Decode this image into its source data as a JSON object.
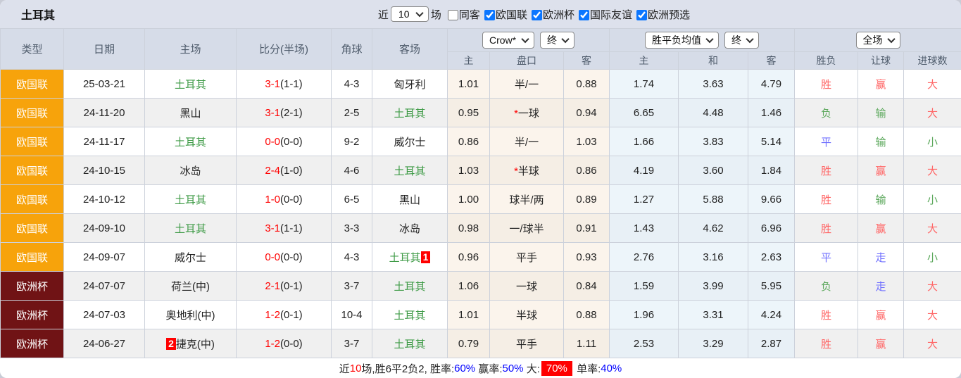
{
  "colors": {
    "league_orange": "#f7a30b",
    "cup_maroon": "#701315",
    "win_red": "#ff6666",
    "lose_green": "#5ca85c",
    "draw_blue": "#7070ff",
    "score_red": "#ff0000",
    "team_green": "#3f9b47",
    "link_blue": "#0000ff",
    "highlight_red": "#ff0000"
  },
  "topbar": {
    "title": "土耳其",
    "recent_label": "近",
    "recent_value": "10",
    "matches_label": "场",
    "filters": [
      {
        "label": "同客",
        "checked": false
      },
      {
        "label": "欧国联",
        "checked": true
      },
      {
        "label": "欧洲杯",
        "checked": true
      },
      {
        "label": "国际友谊",
        "checked": true
      },
      {
        "label": "欧洲预选",
        "checked": true
      }
    ]
  },
  "table": {
    "left_headers": [
      "类型",
      "日期",
      "主场",
      "比分(半场)",
      "角球",
      "客场"
    ],
    "dropdowns": {
      "company": "Crow*",
      "company_state": "终",
      "odds_type": "胜平负均值",
      "odds_state": "终",
      "scope": "全场"
    },
    "sub_headers": [
      "主",
      "盘口",
      "客",
      "主",
      "和",
      "客",
      "胜负",
      "让球",
      "进球数"
    ],
    "rows": [
      {
        "type": "欧国联",
        "type_cls": "nl",
        "date": "25-03-21",
        "home": "土耳其",
        "home_green": true,
        "home_badge": "",
        "score_ft": "3-1",
        "score_ht": "(1-1)",
        "corners": "4-3",
        "away": "匈牙利",
        "away_green": false,
        "away_badge": "",
        "h_home": "1.01",
        "handicap_star": false,
        "handicap": "半/一",
        "h_away": "0.88",
        "o_home": "1.74",
        "o_draw": "3.63",
        "o_away": "4.79",
        "result": "胜",
        "result_c": "r",
        "cover": "赢",
        "cover_c": "r",
        "goals": "大",
        "goals_c": "r"
      },
      {
        "type": "欧国联",
        "type_cls": "nl",
        "date": "24-11-20",
        "home": "黑山",
        "home_green": false,
        "home_badge": "",
        "score_ft": "3-1",
        "score_ht": "(2-1)",
        "corners": "2-5",
        "away": "土耳其",
        "away_green": true,
        "away_badge": "",
        "h_home": "0.95",
        "handicap_star": true,
        "handicap": "一球",
        "h_away": "0.94",
        "o_home": "6.65",
        "o_draw": "4.48",
        "o_away": "1.46",
        "result": "负",
        "result_c": "g",
        "cover": "输",
        "cover_c": "g",
        "goals": "大",
        "goals_c": "r"
      },
      {
        "type": "欧国联",
        "type_cls": "nl",
        "date": "24-11-17",
        "home": "土耳其",
        "home_green": true,
        "home_badge": "",
        "score_ft": "0-0",
        "score_ht": "(0-0)",
        "corners": "9-2",
        "away": "威尔士",
        "away_green": false,
        "away_badge": "",
        "h_home": "0.86",
        "handicap_star": false,
        "handicap": "半/一",
        "h_away": "1.03",
        "o_home": "1.66",
        "o_draw": "3.83",
        "o_away": "5.14",
        "result": "平",
        "result_c": "b",
        "cover": "输",
        "cover_c": "g",
        "goals": "小",
        "goals_c": "g"
      },
      {
        "type": "欧国联",
        "type_cls": "nl",
        "date": "24-10-15",
        "home": "冰岛",
        "home_green": false,
        "home_badge": "",
        "score_ft": "2-4",
        "score_ht": "(1-0)",
        "corners": "4-6",
        "away": "土耳其",
        "away_green": true,
        "away_badge": "",
        "h_home": "1.03",
        "handicap_star": true,
        "handicap": "半球",
        "h_away": "0.86",
        "o_home": "4.19",
        "o_draw": "3.60",
        "o_away": "1.84",
        "result": "胜",
        "result_c": "r",
        "cover": "赢",
        "cover_c": "r",
        "goals": "大",
        "goals_c": "r"
      },
      {
        "type": "欧国联",
        "type_cls": "nl",
        "date": "24-10-12",
        "home": "土耳其",
        "home_green": true,
        "home_badge": "",
        "score_ft": "1-0",
        "score_ht": "(0-0)",
        "corners": "6-5",
        "away": "黑山",
        "away_green": false,
        "away_badge": "",
        "h_home": "1.00",
        "handicap_star": false,
        "handicap": "球半/两",
        "h_away": "0.89",
        "o_home": "1.27",
        "o_draw": "5.88",
        "o_away": "9.66",
        "result": "胜",
        "result_c": "r",
        "cover": "输",
        "cover_c": "g",
        "goals": "小",
        "goals_c": "g"
      },
      {
        "type": "欧国联",
        "type_cls": "nl",
        "date": "24-09-10",
        "home": "土耳其",
        "home_green": true,
        "home_badge": "",
        "score_ft": "3-1",
        "score_ht": "(1-1)",
        "corners": "3-3",
        "away": "冰岛",
        "away_green": false,
        "away_badge": "",
        "h_home": "0.98",
        "handicap_star": false,
        "handicap": "一/球半",
        "h_away": "0.91",
        "o_home": "1.43",
        "o_draw": "4.62",
        "o_away": "6.96",
        "result": "胜",
        "result_c": "r",
        "cover": "赢",
        "cover_c": "r",
        "goals": "大",
        "goals_c": "r"
      },
      {
        "type": "欧国联",
        "type_cls": "nl",
        "date": "24-09-07",
        "home": "威尔士",
        "home_green": false,
        "home_badge": "",
        "score_ft": "0-0",
        "score_ht": "(0-0)",
        "corners": "4-3",
        "away": "土耳其",
        "away_green": true,
        "away_badge": "1",
        "h_home": "0.96",
        "handicap_star": false,
        "handicap": "平手",
        "h_away": "0.93",
        "o_home": "2.76",
        "o_draw": "3.16",
        "o_away": "2.63",
        "result": "平",
        "result_c": "b",
        "cover": "走",
        "cover_c": "b",
        "goals": "小",
        "goals_c": "g"
      },
      {
        "type": "欧洲杯",
        "type_cls": "ec",
        "date": "24-07-07",
        "home": "荷兰(中)",
        "home_green": false,
        "home_badge": "",
        "score_ft": "2-1",
        "score_ht": "(0-1)",
        "corners": "3-7",
        "away": "土耳其",
        "away_green": true,
        "away_badge": "",
        "h_home": "1.06",
        "handicap_star": false,
        "handicap": "一球",
        "h_away": "0.84",
        "o_home": "1.59",
        "o_draw": "3.99",
        "o_away": "5.95",
        "result": "负",
        "result_c": "g",
        "cover": "走",
        "cover_c": "b",
        "goals": "大",
        "goals_c": "r"
      },
      {
        "type": "欧洲杯",
        "type_cls": "ec",
        "date": "24-07-03",
        "home": "奥地利(中)",
        "home_green": false,
        "home_badge": "",
        "score_ft": "1-2",
        "score_ht": "(0-1)",
        "corners": "10-4",
        "away": "土耳其",
        "away_green": true,
        "away_badge": "",
        "h_home": "1.01",
        "handicap_star": false,
        "handicap": "半球",
        "h_away": "0.88",
        "o_home": "1.96",
        "o_draw": "3.31",
        "o_away": "4.24",
        "result": "胜",
        "result_c": "r",
        "cover": "赢",
        "cover_c": "r",
        "goals": "大",
        "goals_c": "r"
      },
      {
        "type": "欧洲杯",
        "type_cls": "ec",
        "date": "24-06-27",
        "home": "捷克(中)",
        "home_green": false,
        "home_badge": "2",
        "score_ft": "1-2",
        "score_ht": "(0-0)",
        "corners": "3-7",
        "away": "土耳其",
        "away_green": true,
        "away_badge": "",
        "h_home": "0.79",
        "handicap_star": false,
        "handicap": "平手",
        "h_away": "1.11",
        "o_home": "2.53",
        "o_draw": "3.29",
        "o_away": "2.87",
        "result": "胜",
        "result_c": "r",
        "cover": "赢",
        "cover_c": "r",
        "goals": "大",
        "goals_c": "r"
      }
    ]
  },
  "summary": {
    "segments": [
      {
        "text": "近",
        "cls": ""
      },
      {
        "text": "10",
        "cls": "red"
      },
      {
        "text": "场,胜6平2负2, 胜率:",
        "cls": ""
      },
      {
        "text": "60%",
        "cls": "blue"
      },
      {
        "text": " 赢率:",
        "cls": ""
      },
      {
        "text": "50%",
        "cls": "blue"
      },
      {
        "text": " 大:",
        "cls": ""
      },
      {
        "text": "70%",
        "cls": "redbox"
      },
      {
        "text": " 单率:",
        "cls": ""
      },
      {
        "text": "40%",
        "cls": "blue"
      }
    ]
  }
}
